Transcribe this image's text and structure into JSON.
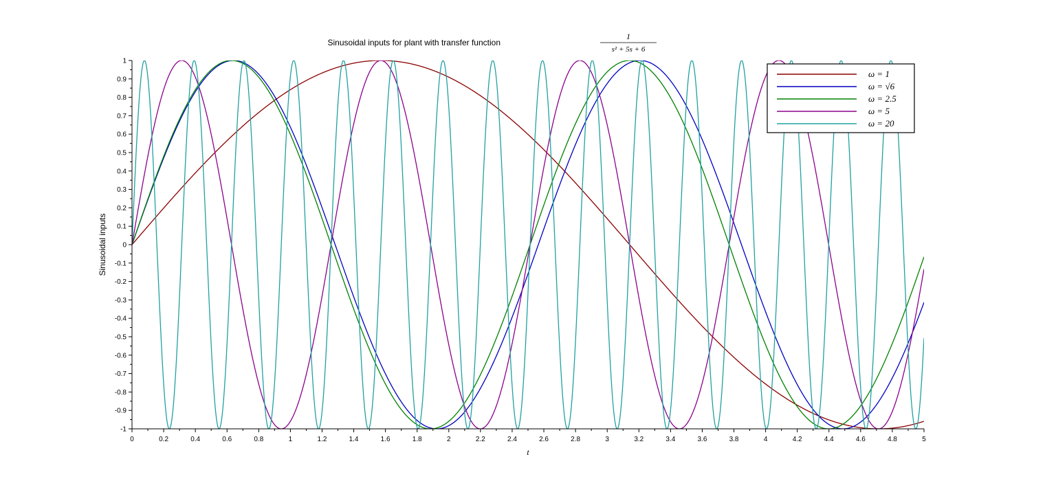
{
  "chart_data": {
    "type": "line",
    "title": "Sinusoidal inputs for plant with transfer function",
    "title_fraction": {
      "numerator": "1",
      "denominator": "s² + 5s + 6"
    },
    "xlabel": "t",
    "ylabel": "Sinusoidal inputs",
    "xlim": [
      0,
      5
    ],
    "ylim": [
      -1,
      1
    ],
    "x_ticks": [
      "0",
      "0.2",
      "0.4",
      "0.6",
      "0.8",
      "1",
      "1.2",
      "1.4",
      "1.6",
      "1.8",
      "2",
      "2.2",
      "2.4",
      "2.6",
      "2.8",
      "3",
      "3.2",
      "3.4",
      "3.6",
      "3.8",
      "4",
      "4.2",
      "4.4",
      "4.6",
      "4.8",
      "5"
    ],
    "y_ticks": [
      "-1",
      "-0.9",
      "-0.8",
      "-0.7",
      "-0.6",
      "-0.5",
      "-0.4",
      "-0.3",
      "-0.2",
      "-0.1",
      "0",
      "0.1",
      "0.2",
      "0.3",
      "0.4",
      "0.5",
      "0.6",
      "0.7",
      "0.8",
      "0.9",
      "1"
    ],
    "grid": false,
    "legend_position": "top-right",
    "function": "sin(omega * t)",
    "series": [
      {
        "name": "ω = 1",
        "omega": 1,
        "color": "#8b0000"
      },
      {
        "name": "ω = √6",
        "omega": 2.449489743,
        "color": "#0000c0"
      },
      {
        "name": "ω = 2.5",
        "omega": 2.5,
        "color": "#008000"
      },
      {
        "name": "ω = 5",
        "omega": 5,
        "color": "#8b008b"
      },
      {
        "name": "ω = 20",
        "omega": 20,
        "color": "#20a0a0"
      }
    ]
  }
}
